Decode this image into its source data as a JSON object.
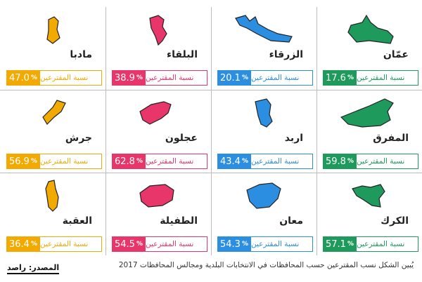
{
  "caption": "يُبين الشكل نسب المقترعين حسب المحافظات في الانتخابات البلدية ومجالس المحافظات 2017",
  "source": "المصدر: راصد",
  "stat_label": "نسبة المقترعين",
  "percent_sign": "%",
  "colors": {
    "green": "#1e9a5c",
    "blue": "#2b8ee0",
    "pink": "#e8356a",
    "orange": "#f2a900"
  },
  "governorates": [
    {
      "name": "عمّان",
      "value": "17.6",
      "color": "#1e9a5c"
    },
    {
      "name": "الزرقاء",
      "value": "20.1",
      "color": "#2b8ee0"
    },
    {
      "name": "البلقاء",
      "value": "38.9",
      "color": "#e8356a"
    },
    {
      "name": "مادبا",
      "value": "47.0",
      "color": "#f2a900"
    },
    {
      "name": "المفرق",
      "value": "59.8",
      "color": "#1e9a5c"
    },
    {
      "name": "اربد",
      "value": "43.4",
      "color": "#2b8ee0"
    },
    {
      "name": "عجلون",
      "value": "62.8",
      "color": "#e8356a"
    },
    {
      "name": "جرش",
      "value": "56.9",
      "color": "#f2a900"
    },
    {
      "name": "الكرك",
      "value": "57.1",
      "color": "#1e9a5c"
    },
    {
      "name": "معان",
      "value": "54.3",
      "color": "#2b8ee0"
    },
    {
      "name": "الطفيلة",
      "value": "54.5",
      "color": "#e8356a"
    },
    {
      "name": "العقبة",
      "value": "36.4",
      "color": "#f2a900"
    }
  ]
}
